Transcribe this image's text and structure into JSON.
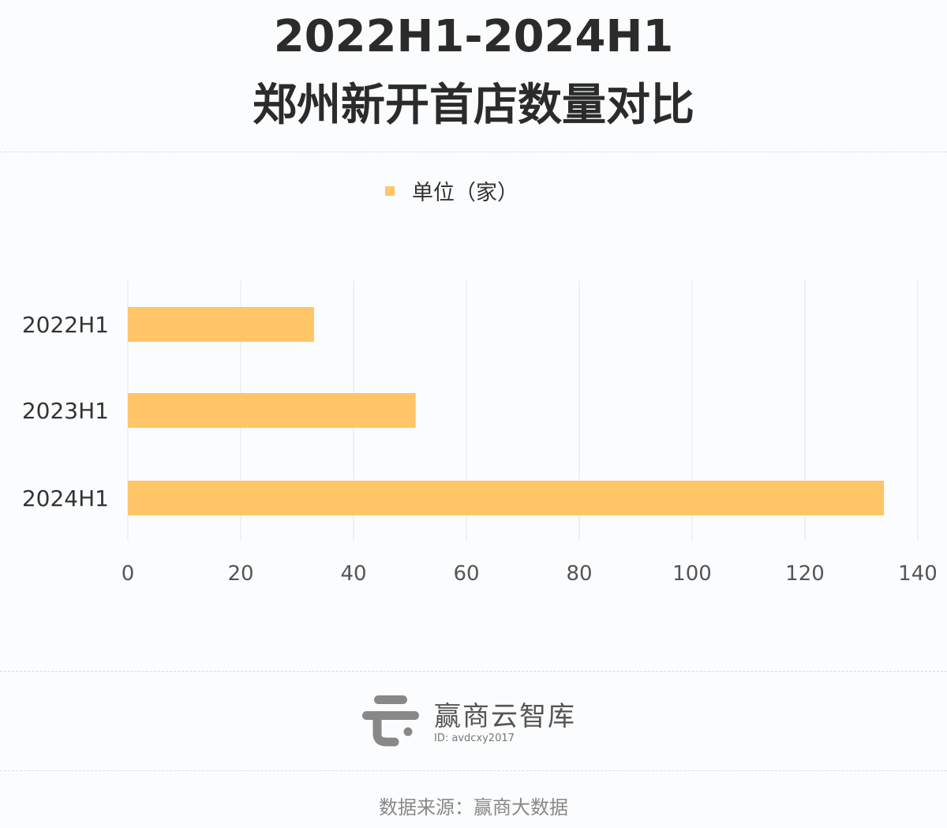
{
  "title_line1": "2022H1-2024H1",
  "title_line2": "郑州新开首店数量对比",
  "chart_data": {
    "type": "bar",
    "orientation": "horizontal",
    "categories": [
      "2022H1",
      "2023H1",
      "2024H1"
    ],
    "series": [
      {
        "name": "单位（家）",
        "values": [
          33,
          51,
          134
        ],
        "color": "#ffc567"
      }
    ],
    "xlim": [
      0,
      140
    ],
    "xticks": [
      0,
      20,
      40,
      60,
      80,
      100,
      120,
      140
    ],
    "grid": true,
    "legend": "top-center"
  },
  "logo": {
    "name": "赢商云智库",
    "id": "ID: avdcxy2017"
  },
  "source": "数据来源：赢商大数据"
}
